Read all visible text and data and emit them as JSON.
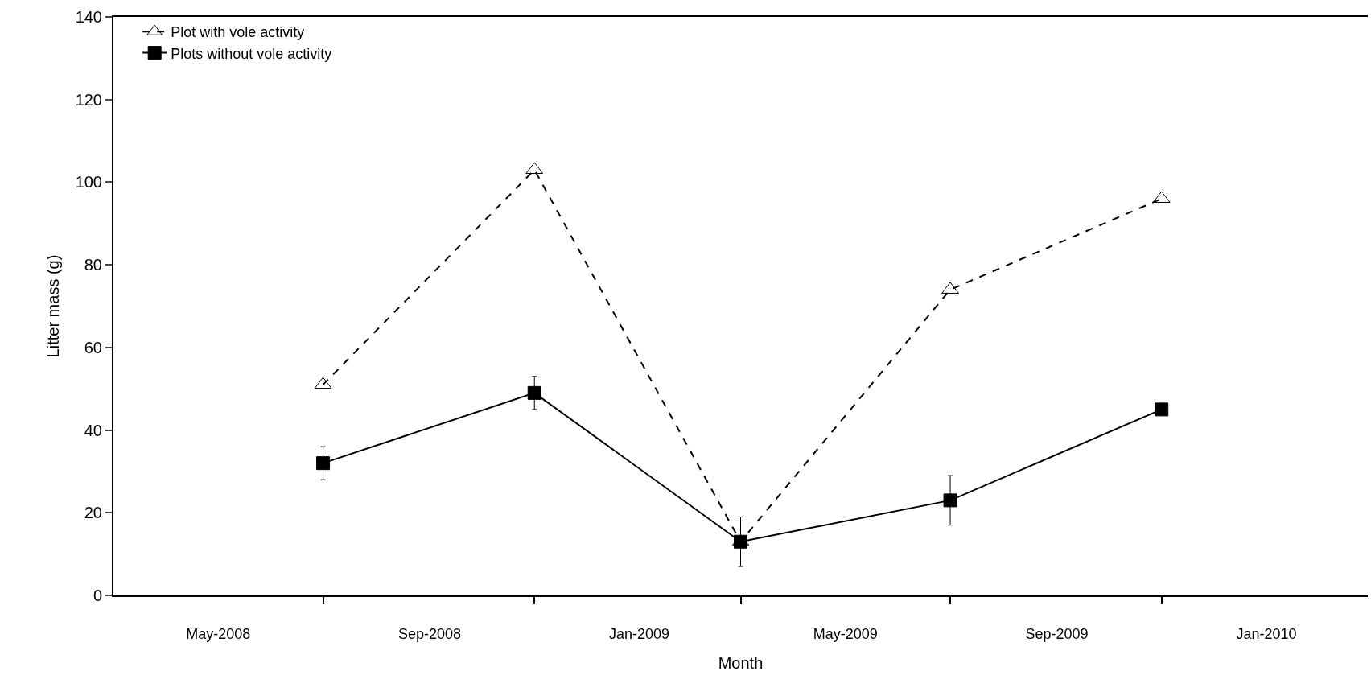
{
  "chart_data": {
    "type": "line",
    "xlabel": "Month",
    "ylabel": "Litter mass (g)",
    "x": [
      "2008-07",
      "2008-11",
      "2009-03",
      "2009-07",
      "2009-11"
    ],
    "series": [
      {
        "name": "Plot with vole activity",
        "color": "#000000",
        "marker": "triangle",
        "line_style": "dashed",
        "values": [
          51,
          103,
          13,
          74,
          96
        ]
      },
      {
        "name": "Plots without vole activity",
        "color": "#000000",
        "marker": "square",
        "line_style": "solid",
        "values": [
          32,
          49,
          13,
          23,
          45
        ],
        "errors": [
          4,
          4,
          6,
          6,
          null
        ]
      }
    ],
    "xlim": [
      "2008-03-01",
      "2010-03-01"
    ],
    "xticks": [
      {
        "value": "2008-05",
        "label": "May-2008"
      },
      {
        "value": "2008-09",
        "label": "Sep-2008"
      },
      {
        "value": "2009-01",
        "label": "Jan-2009"
      },
      {
        "value": "2009-05",
        "label": "May-2009"
      },
      {
        "value": "2009-09",
        "label": "Sep-2009"
      },
      {
        "value": "2010-01",
        "label": "Jan-2010"
      },
      {
        "value": "2008-07",
        "label": null
      },
      {
        "value": "2008-11",
        "label": null
      },
      {
        "value": "2009-03",
        "label": null
      },
      {
        "value": "2009-07",
        "label": null
      },
      {
        "value": "2009-11",
        "label": null
      }
    ],
    "ylim": [
      0,
      140
    ],
    "yticks": [
      0,
      20,
      40,
      60,
      80,
      100,
      120,
      140
    ],
    "legend": "top left"
  }
}
